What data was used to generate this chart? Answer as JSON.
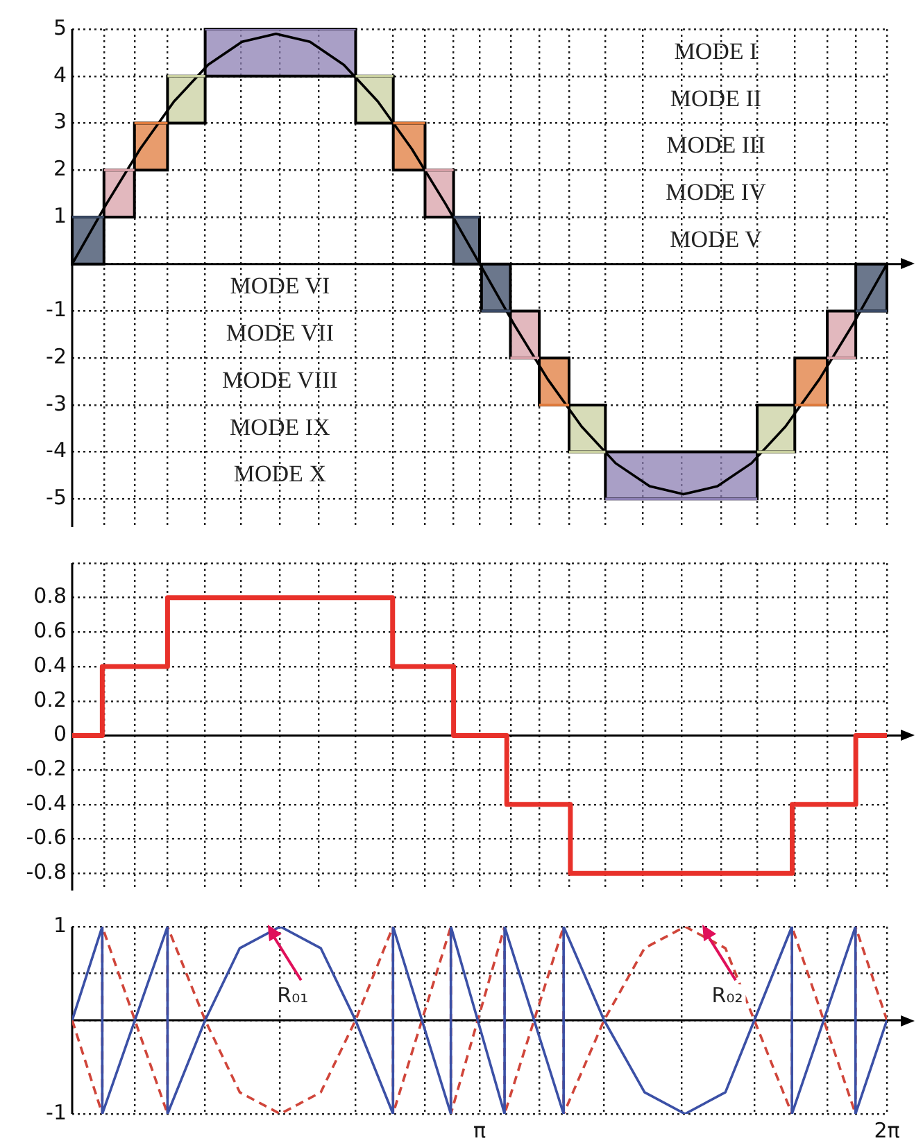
{
  "chart_data": [
    {
      "type": "line",
      "xlim": [
        0,
        6.28
      ],
      "ylim": [
        -5.6,
        5
      ],
      "yticks": [
        -5,
        -4,
        -3,
        -2,
        -1,
        {
          "value": 0,
          "label": null
        },
        1,
        2,
        3,
        4,
        5
      ],
      "xticks": [
        {
          "value": 0.245,
          "label": null
        },
        {
          "value": 0.48,
          "label": null
        },
        {
          "value": 0.735,
          "label": null
        },
        {
          "value": 1.025,
          "label": null
        },
        {
          "value": 1.3,
          "label": null
        },
        {
          "value": 1.6,
          "label": null
        },
        {
          "value": 1.9,
          "label": null
        },
        {
          "value": 2.185,
          "label": null
        },
        {
          "value": 2.475,
          "label": null
        },
        {
          "value": 2.72,
          "label": null
        },
        {
          "value": 2.94,
          "label": null
        },
        {
          "value": 3.14,
          "label": null
        },
        {
          "value": 3.38,
          "label": null
        },
        {
          "value": 3.6,
          "label": null
        },
        {
          "value": 3.83,
          "label": null
        },
        {
          "value": 4.11,
          "label": null
        },
        {
          "value": 4.4,
          "label": null
        },
        {
          "value": 4.7,
          "label": null
        },
        {
          "value": 5.0,
          "label": null
        },
        {
          "value": 5.28,
          "label": null
        },
        {
          "value": 5.57,
          "label": null
        },
        {
          "value": 5.82,
          "label": null
        },
        {
          "value": 6.04,
          "label": null
        },
        {
          "value": 6.28,
          "label": null
        }
      ],
      "grid": true,
      "tick_labels": "y",
      "series": [
        {
          "x": [
            0,
            0.245
          ],
          "values": [
            1,
            1
          ],
          "lower": [
            0,
            0
          ],
          "upper": [
            1,
            1
          ],
          "color": "#3a4a66"
        },
        {
          "x": [
            0.245,
            0.48
          ],
          "values": [
            2,
            2
          ],
          "lower": [
            1,
            1
          ],
          "upper": [
            2,
            2
          ],
          "color": "#d8a0a8"
        },
        {
          "x": [
            0.48,
            0.735
          ],
          "values": [
            3,
            3
          ],
          "lower": [
            2,
            2
          ],
          "upper": [
            3,
            3
          ],
          "color": "#e07b3c"
        },
        {
          "x": [
            0.735,
            1.025
          ],
          "values": [
            4,
            4
          ],
          "lower": [
            3,
            3
          ],
          "upper": [
            4,
            4
          ],
          "color": "#c9d0a0"
        },
        {
          "x": [
            1.025,
            2.185
          ],
          "values": [
            5,
            5
          ],
          "lower": [
            4,
            4
          ],
          "upper": [
            5,
            5
          ],
          "color": "#8c7fb3"
        },
        {
          "x": [
            2.185,
            2.475
          ],
          "values": [
            4,
            4
          ],
          "lower": [
            3,
            3
          ],
          "upper": [
            4,
            4
          ],
          "color": "#c9d0a0"
        },
        {
          "x": [
            2.475,
            2.72
          ],
          "values": [
            3,
            3
          ],
          "lower": [
            2,
            2
          ],
          "upper": [
            3,
            3
          ],
          "color": "#e07b3c"
        },
        {
          "x": [
            2.72,
            2.94
          ],
          "values": [
            2,
            2
          ],
          "lower": [
            1,
            1
          ],
          "upper": [
            2,
            2
          ],
          "color": "#d8a0a8"
        },
        {
          "x": [
            2.94,
            3.14
          ],
          "values": [
            1,
            1
          ],
          "lower": [
            0,
            0
          ],
          "upper": [
            1,
            1
          ],
          "color": "#3a4a66"
        },
        {
          "x": [
            3.155,
            3.378
          ],
          "values": [
            -1,
            -1
          ],
          "lower": [
            -1,
            -1
          ],
          "upper": [
            0,
            0
          ],
          "color": "#3a4a66"
        },
        {
          "x": [
            3.378,
            3.6
          ],
          "values": [
            -2,
            -2
          ],
          "lower": [
            -2,
            -2
          ],
          "upper": [
            -1,
            -1
          ],
          "color": "#d8a0a8"
        },
        {
          "x": [
            3.6,
            3.83
          ],
          "values": [
            -3,
            -3
          ],
          "lower": [
            -3,
            -3
          ],
          "upper": [
            -2,
            -2
          ],
          "color": "#e07b3c"
        },
        {
          "x": [
            3.83,
            4.11
          ],
          "values": [
            -4,
            -4
          ],
          "lower": [
            -4,
            -4
          ],
          "upper": [
            -3,
            -3
          ],
          "color": "#c9d0a0"
        },
        {
          "x": [
            4.11,
            5.28
          ],
          "values": [
            -5,
            -5
          ],
          "lower": [
            -5,
            -5
          ],
          "upper": [
            -4,
            -4
          ],
          "color": "#8c7fb3"
        },
        {
          "x": [
            5.28,
            5.57
          ],
          "values": [
            -4,
            -4
          ],
          "lower": [
            -4,
            -4
          ],
          "upper": [
            -3,
            -3
          ],
          "color": "#c9d0a0"
        },
        {
          "x": [
            5.57,
            5.82
          ],
          "values": [
            -3,
            -3
          ],
          "lower": [
            -3,
            -3
          ],
          "upper": [
            -2,
            -2
          ],
          "color": "#e07b3c"
        },
        {
          "x": [
            5.82,
            6.04
          ],
          "values": [
            -2,
            -2
          ],
          "lower": [
            -2,
            -2
          ],
          "upper": [
            -1,
            -1
          ],
          "color": "#d8a0a8"
        },
        {
          "x": [
            6.04,
            6.28
          ],
          "values": [
            -1,
            -1
          ],
          "lower": [
            -1,
            -1
          ],
          "upper": [
            0,
            0
          ],
          "color": "#3a4a66"
        },
        {
          "x": [
            0,
            0.262,
            0.524,
            0.785,
            1.047,
            1.309,
            1.571,
            1.833,
            2.094,
            2.356,
            2.618,
            2.88,
            3.142,
            3.403,
            3.665,
            3.927,
            4.189,
            4.451,
            4.712,
            4.974,
            5.236,
            5.498,
            5.76,
            6.021,
            6.28
          ],
          "values": [
            0,
            1.27,
            2.45,
            3.46,
            4.24,
            4.73,
            4.9,
            4.73,
            4.24,
            3.46,
            2.45,
            1.27,
            0,
            -1.27,
            -2.45,
            -3.46,
            -4.24,
            -4.73,
            -4.9,
            -4.73,
            -4.24,
            -3.46,
            -2.45,
            -1.27,
            0
          ],
          "color": "#000000"
        }
      ],
      "annotations": [
        "MODE I",
        "MODE II",
        "MODE III",
        "MODE IV",
        "MODE V",
        "MODE VI",
        "MODE VII",
        "MODE VIII",
        "MODE IX",
        "MODE X"
      ]
    },
    {
      "type": "step",
      "xlim": [
        0,
        6.28
      ],
      "ylim": [
        -0.9,
        1.0
      ],
      "yticks": [
        -0.8,
        -0.6,
        -0.4,
        -0.2,
        0,
        0.2,
        0.4,
        0.6,
        0.8,
        {
          "value": 1.0,
          "label": null
        }
      ],
      "xticks": [
        {
          "value": 0.245,
          "label": null
        },
        {
          "value": 0.48,
          "label": null
        },
        {
          "value": 0.735,
          "label": null
        },
        {
          "value": 1.025,
          "label": null
        },
        {
          "value": 1.3,
          "label": null
        },
        {
          "value": 1.6,
          "label": null
        },
        {
          "value": 1.9,
          "label": null
        },
        {
          "value": 2.185,
          "label": null
        },
        {
          "value": 2.475,
          "label": null
        },
        {
          "value": 2.72,
          "label": null
        },
        {
          "value": 2.94,
          "label": null
        },
        {
          "value": 3.14,
          "label": null
        },
        {
          "value": 3.38,
          "label": null
        },
        {
          "value": 3.6,
          "label": null
        },
        {
          "value": 3.83,
          "label": null
        },
        {
          "value": 4.11,
          "label": null
        },
        {
          "value": 4.4,
          "label": null
        },
        {
          "value": 4.7,
          "label": null
        },
        {
          "value": 5.0,
          "label": null
        },
        {
          "value": 5.28,
          "label": null
        },
        {
          "value": 5.57,
          "label": null
        },
        {
          "value": 5.82,
          "label": null
        },
        {
          "value": 6.04,
          "label": null
        },
        {
          "value": 6.28,
          "label": null
        }
      ],
      "grid": true,
      "tick_labels": "y",
      "series": [
        {
          "x": [
            0,
            0.232,
            0.735,
            2.47,
            2.94,
            3.35,
            3.84,
            5.55,
            6.04,
            6.28
          ],
          "values": [
            0,
            0.4,
            0.8,
            0.4,
            0,
            -0.4,
            -0.8,
            -0.4,
            0,
            0
          ],
          "color": "#e8312a"
        }
      ]
    },
    {
      "type": "line",
      "xlim": [
        0,
        6.28
      ],
      "ylim": [
        -1,
        1
      ],
      "yticks": [
        -1,
        {
          "value": 0,
          "label": null
        },
        {
          "value": 0.5,
          "label": null
        },
        1
      ],
      "xticks": [
        {
          "value": 0.48,
          "label": null
        },
        {
          "value": 1.025,
          "label": null
        },
        {
          "value": 1.6,
          "label": null
        },
        {
          "value": 2.185,
          "label": null
        },
        {
          "value": 2.72,
          "label": null
        },
        {
          "value": 3.14,
          "label": "π"
        },
        {
          "value": 3.6,
          "label": null
        },
        {
          "value": 4.1,
          "label": null
        },
        {
          "value": 4.7,
          "label": null
        },
        {
          "value": 5.258,
          "label": null
        },
        {
          "value": 5.82,
          "label": null
        },
        {
          "value": 6.28,
          "label": "2π"
        }
      ],
      "grid": true,
      "series": [
        {
          "x": [
            0,
            0.232,
            0.232,
            0.735,
            0.735,
            1.025,
            1.292,
            1.604,
            1.916,
            2.184,
            2.473,
            2.473,
            2.919,
            2.919,
            3.333,
            3.333,
            3.788,
            3.788,
            4.1,
            4.412,
            4.724,
            5.035,
            5.258,
            5.548,
            5.548,
            6.038,
            6.038,
            6.28
          ],
          "values": [
            0,
            1,
            -1,
            1,
            -1,
            0,
            0.77,
            1,
            0.77,
            0,
            -1,
            1,
            -1,
            1,
            -1,
            1,
            -1,
            1,
            0,
            -0.77,
            -1,
            -0.77,
            0,
            1,
            -1,
            1,
            -1,
            0
          ],
          "color": "#3b50a6"
        },
        {
          "x": [
            0,
            0.232,
            0.232,
            0.735,
            0.735,
            1.025,
            1.292,
            1.604,
            1.916,
            2.184,
            2.473,
            2.473,
            2.919,
            2.919,
            3.333,
            3.333,
            3.788,
            3.788,
            4.1,
            4.412,
            4.724,
            5.035,
            5.258,
            5.548,
            5.548,
            6.038,
            6.038,
            6.28
          ],
          "values": [
            0,
            -1,
            1,
            -1,
            1,
            0,
            -0.77,
            -1,
            -0.77,
            0,
            1,
            -1,
            1,
            -1,
            1,
            -1,
            1,
            -1,
            0,
            0.77,
            1,
            0.77,
            0,
            -1,
            1,
            -1,
            1,
            0
          ],
          "color": "#d0453a",
          "line_style": "dashed"
        }
      ],
      "annotations": [
        {
          "text": "R₀₁",
          "x": 1.7,
          "y": 0.25
        },
        {
          "text": "R₀₂",
          "x": 5.05,
          "y": 0.25
        }
      ]
    }
  ]
}
